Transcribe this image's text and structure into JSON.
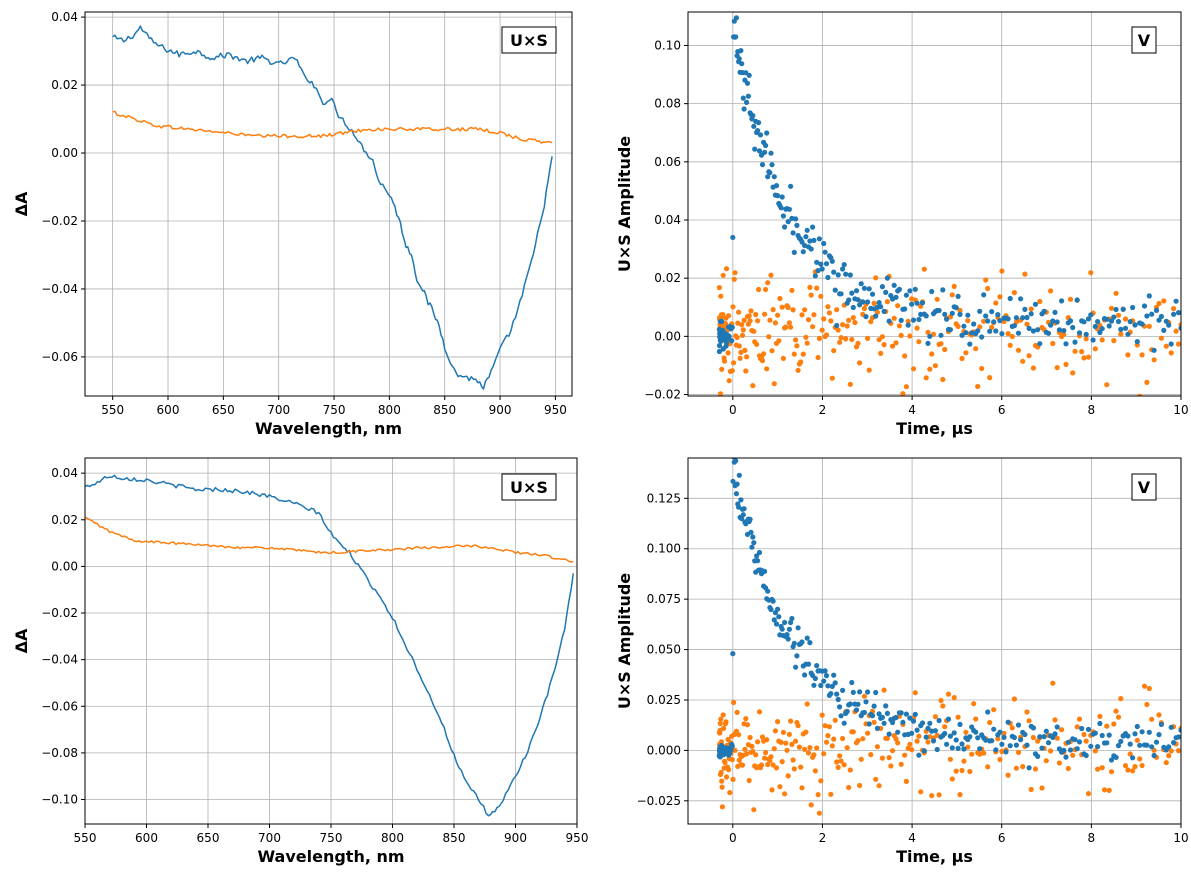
{
  "chart_data": [
    {
      "type": "line",
      "tag": "U×S",
      "xlabel": "Wavelength, nm",
      "ylabel": "ΔA",
      "xlim": [
        525,
        965
      ],
      "ylim": [
        -0.0715,
        0.0415
      ],
      "xticks": [
        550,
        600,
        650,
        700,
        750,
        800,
        850,
        900,
        950
      ],
      "yticks": [
        -0.06,
        -0.04,
        -0.02,
        0.0,
        0.02,
        0.04
      ],
      "ytick_labels": [
        "−0.06",
        "−0.04",
        "−0.02",
        "0.00",
        "0.02",
        "0.04"
      ],
      "grid": true,
      "colors": {
        "series1": "#1f77b4",
        "series2": "#ff7f0e"
      },
      "series": [
        {
          "x": [
            550,
            560,
            570,
            575,
            585,
            595,
            610,
            625,
            640,
            655,
            670,
            685,
            700,
            715,
            722,
            730,
            740,
            748,
            752,
            760,
            770,
            775,
            785,
            790,
            800,
            805,
            810,
            815,
            820,
            825,
            830,
            835,
            840,
            845,
            850,
            855,
            860,
            870,
            880,
            885,
            890,
            900,
            910,
            920,
            930,
            940,
            947
          ],
          "y": [
            0.034,
            0.033,
            0.035,
            0.037,
            0.033,
            0.031,
            0.029,
            0.03,
            0.028,
            0.029,
            0.027,
            0.028,
            0.026,
            0.028,
            0.023,
            0.021,
            0.015,
            0.016,
            0.012,
            0.009,
            0.005,
            0.002,
            -0.002,
            -0.008,
            -0.012,
            -0.016,
            -0.021,
            -0.027,
            -0.03,
            -0.037,
            -0.04,
            -0.044,
            -0.047,
            -0.051,
            -0.057,
            -0.061,
            -0.065,
            -0.066,
            -0.067,
            -0.069,
            -0.066,
            -0.058,
            -0.052,
            -0.042,
            -0.03,
            -0.015,
            -0.001
          ]
        },
        {
          "x": [
            550,
            570,
            590,
            620,
            650,
            680,
            700,
            720,
            740,
            760,
            780,
            800,
            820,
            840,
            860,
            880,
            900,
            920,
            947
          ],
          "y": [
            0.012,
            0.01,
            0.008,
            0.007,
            0.006,
            0.005,
            0.005,
            0.005,
            0.005,
            0.006,
            0.007,
            0.007,
            0.007,
            0.007,
            0.007,
            0.007,
            0.006,
            0.004,
            0.003
          ]
        }
      ]
    },
    {
      "type": "scatter",
      "tag": "V",
      "xlabel": "Time, μs",
      "ylabel": "U×S Amplitude",
      "xlim": [
        -1,
        10
      ],
      "ylim": [
        -0.0205,
        0.1115
      ],
      "xticks": [
        0,
        2,
        4,
        6,
        8,
        10
      ],
      "yticks": [
        -0.02,
        0.0,
        0.02,
        0.04,
        0.06,
        0.08,
        0.1
      ],
      "ytick_labels": [
        "−0.02",
        "0.00",
        "0.02",
        "0.04",
        "0.06",
        "0.08",
        "0.10"
      ],
      "grid": true,
      "colors": {
        "series1": "#1f77b4",
        "series2": "#ff7f0e"
      },
      "decay": {
        "amplitude": 0.104,
        "tau": 1.2,
        "offset": 0.005,
        "noise1": 0.004,
        "noise2": 0.009
      },
      "outliers": [
        {
          "x": 0.0,
          "y": 0.034
        }
      ]
    },
    {
      "type": "line",
      "tag": "U×S",
      "xlabel": "Wavelength, nm",
      "ylabel": "ΔA",
      "xlim": [
        550,
        950
      ],
      "ylim": [
        -0.1105,
        0.0465
      ],
      "xticks": [
        550,
        600,
        650,
        700,
        750,
        800,
        850,
        900,
        950
      ],
      "yticks": [
        -0.1,
        -0.08,
        -0.06,
        -0.04,
        -0.02,
        0.0,
        0.02,
        0.04
      ],
      "ytick_labels": [
        "−0.10",
        "−0.08",
        "−0.06",
        "−0.04",
        "−0.02",
        "0.00",
        "0.02",
        "0.04"
      ],
      "grid": true,
      "colors": {
        "series1": "#1f77b4",
        "series2": "#ff7f0e"
      },
      "series": [
        {
          "x": [
            550,
            560,
            570,
            580,
            600,
            620,
            640,
            660,
            680,
            700,
            720,
            740,
            750,
            760,
            765,
            770,
            780,
            790,
            800,
            810,
            820,
            830,
            840,
            850,
            860,
            870,
            878,
            885,
            890,
            900,
            910,
            920,
            930,
            940,
            947
          ],
          "y": [
            0.034,
            0.036,
            0.039,
            0.038,
            0.037,
            0.035,
            0.033,
            0.033,
            0.032,
            0.03,
            0.027,
            0.023,
            0.014,
            0.008,
            0.006,
            0.002,
            -0.006,
            -0.013,
            -0.022,
            -0.033,
            -0.044,
            -0.055,
            -0.067,
            -0.081,
            -0.093,
            -0.1,
            -0.107,
            -0.104,
            -0.1,
            -0.09,
            -0.079,
            -0.065,
            -0.048,
            -0.027,
            -0.003
          ]
        },
        {
          "x": [
            550,
            570,
            590,
            620,
            650,
            680,
            700,
            720,
            740,
            760,
            780,
            800,
            820,
            840,
            860,
            880,
            900,
            920,
            947
          ],
          "y": [
            0.021,
            0.015,
            0.011,
            0.01,
            0.009,
            0.008,
            0.008,
            0.007,
            0.006,
            0.006,
            0.007,
            0.007,
            0.008,
            0.008,
            0.009,
            0.008,
            0.006,
            0.005,
            0.002
          ]
        }
      ]
    },
    {
      "type": "scatter",
      "tag": "V",
      "xlabel": "Time,   μs",
      "ylabel": "U×S Amplitude",
      "xlim": [
        -1,
        10
      ],
      "ylim": [
        -0.0365,
        0.145
      ],
      "xticks": [
        0,
        2,
        4,
        6,
        8,
        10
      ],
      "yticks": [
        -0.025,
        0.0,
        0.025,
        0.05,
        0.075,
        0.1,
        0.125
      ],
      "ytick_labels": [
        "−0.025",
        "0.000",
        "0.025",
        "0.050",
        "0.075",
        "0.100",
        "0.125"
      ],
      "grid": true,
      "colors": {
        "series1": "#1f77b4",
        "series2": "#ff7f0e"
      },
      "decay": {
        "amplitude": 0.135,
        "tau": 1.3,
        "offset": 0.005,
        "noise1": 0.005,
        "noise2": 0.011
      },
      "outliers": [
        {
          "x": 0.0,
          "y": 0.048
        }
      ]
    }
  ]
}
